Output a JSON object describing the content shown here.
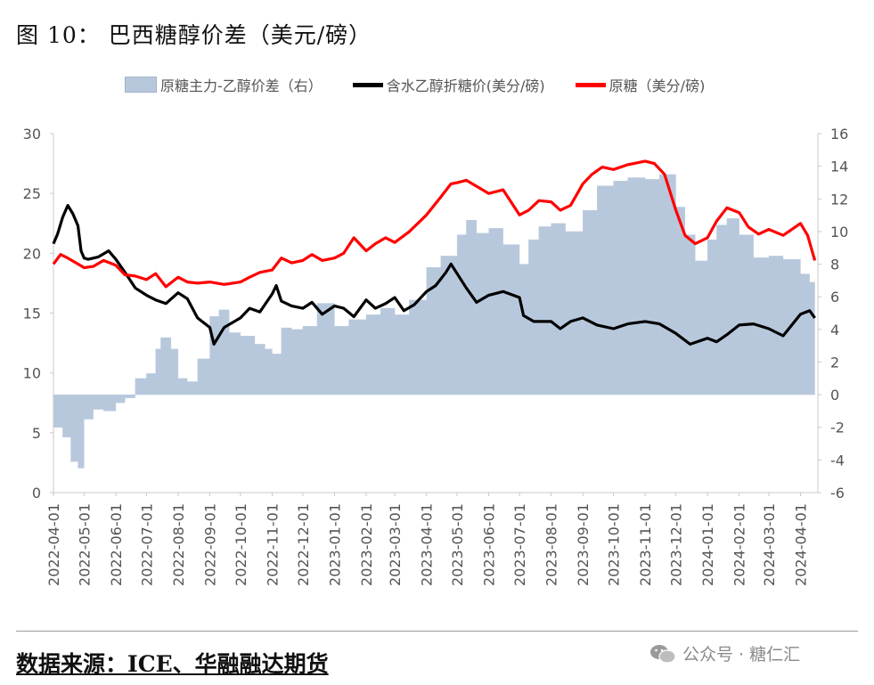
{
  "title": "图 10：  巴西糖醇价差（美元/磅）",
  "source": "数据来源：ICE、华融融达期货",
  "watermark": "公众号 · 糖仁汇",
  "icons": {
    "watermark": "wechat-icon"
  },
  "legend": [
    {
      "label": "原糖主力-乙醇价差（右）",
      "kind": "area",
      "color": "#b8c8dc"
    },
    {
      "label": "含水乙醇折糖价(美分/磅)",
      "kind": "line",
      "color": "#000000"
    },
    {
      "label": "原糖（美分/磅)",
      "kind": "line",
      "color": "#ff0000"
    }
  ],
  "chart_data": {
    "type": "line",
    "x_ticks": [
      "2022-04-01",
      "2022-05-01",
      "2022-06-01",
      "2022-07-01",
      "2022-08-01",
      "2022-09-01",
      "2022-10-01",
      "2022-11-01",
      "2022-12-01",
      "2023-01-01",
      "2023-02-01",
      "2023-03-01",
      "2023-04-01",
      "2023-05-01",
      "2023-06-01",
      "2023-07-01",
      "2023-08-01",
      "2023-09-01",
      "2023-10-01",
      "2023-11-01",
      "2023-12-01",
      "2024-01-01",
      "2024-02-01",
      "2024-03-01",
      "2024-04-01"
    ],
    "y_left": {
      "min": 0,
      "max": 30,
      "ticks": [
        0,
        5,
        10,
        15,
        20,
        25,
        30
      ]
    },
    "y_right": {
      "min": -6,
      "max": 16,
      "ticks": [
        -6,
        -4,
        -2,
        0,
        2,
        4,
        6,
        8,
        10,
        12,
        14,
        16
      ]
    },
    "grid": false,
    "legend_position": "top",
    "series": [
      {
        "name": "原糖主力-乙醇价差（右）",
        "type": "area",
        "axis": "right",
        "color": "#b8c8dc",
        "points": [
          [
            "2022-04-01",
            -2.0
          ],
          [
            "2022-04-10",
            -2.6
          ],
          [
            "2022-04-18",
            -4.1
          ],
          [
            "2022-04-25",
            -4.5
          ],
          [
            "2022-05-01",
            -1.5
          ],
          [
            "2022-05-10",
            -0.9
          ],
          [
            "2022-05-20",
            -1.0
          ],
          [
            "2022-06-01",
            -0.5
          ],
          [
            "2022-06-10",
            -0.2
          ],
          [
            "2022-06-20",
            1.0
          ],
          [
            "2022-07-01",
            1.3
          ],
          [
            "2022-07-10",
            2.8
          ],
          [
            "2022-07-15",
            3.5
          ],
          [
            "2022-07-25",
            2.8
          ],
          [
            "2022-08-01",
            1.0
          ],
          [
            "2022-08-10",
            0.8
          ],
          [
            "2022-08-20",
            2.2
          ],
          [
            "2022-09-01",
            4.8
          ],
          [
            "2022-09-10",
            5.2
          ],
          [
            "2022-09-20",
            3.8
          ],
          [
            "2022-10-01",
            3.6
          ],
          [
            "2022-10-15",
            3.1
          ],
          [
            "2022-10-25",
            2.8
          ],
          [
            "2022-11-01",
            2.5
          ],
          [
            "2022-11-10",
            4.1
          ],
          [
            "2022-11-20",
            4.0
          ],
          [
            "2022-12-01",
            4.2
          ],
          [
            "2022-12-15",
            5.6
          ],
          [
            "2023-01-01",
            4.2
          ],
          [
            "2023-01-15",
            4.6
          ],
          [
            "2023-02-01",
            4.9
          ],
          [
            "2023-02-15",
            5.3
          ],
          [
            "2023-03-01",
            4.9
          ],
          [
            "2023-03-15",
            5.8
          ],
          [
            "2023-04-01",
            7.8
          ],
          [
            "2023-04-15",
            8.5
          ],
          [
            "2023-05-01",
            9.8
          ],
          [
            "2023-05-10",
            10.7
          ],
          [
            "2023-05-20",
            9.9
          ],
          [
            "2023-06-01",
            10.2
          ],
          [
            "2023-06-15",
            9.2
          ],
          [
            "2023-07-01",
            8.0
          ],
          [
            "2023-07-10",
            9.5
          ],
          [
            "2023-07-20",
            10.3
          ],
          [
            "2023-08-01",
            10.5
          ],
          [
            "2023-08-15",
            10.0
          ],
          [
            "2023-09-01",
            11.3
          ],
          [
            "2023-09-15",
            12.8
          ],
          [
            "2023-10-01",
            13.1
          ],
          [
            "2023-10-15",
            13.3
          ],
          [
            "2023-11-01",
            13.2
          ],
          [
            "2023-11-15",
            13.5
          ],
          [
            "2023-12-01",
            11.5
          ],
          [
            "2023-12-10",
            9.8
          ],
          [
            "2023-12-20",
            8.2
          ],
          [
            "2024-01-01",
            9.5
          ],
          [
            "2024-01-10",
            10.4
          ],
          [
            "2024-01-20",
            10.8
          ],
          [
            "2024-02-01",
            9.8
          ],
          [
            "2024-02-15",
            8.4
          ],
          [
            "2024-03-01",
            8.5
          ],
          [
            "2024-03-15",
            8.3
          ],
          [
            "2024-04-01",
            7.4
          ],
          [
            "2024-04-10",
            6.9
          ],
          [
            "2024-04-15",
            5.8
          ]
        ]
      },
      {
        "name": "含水乙醇折糖价(美分/磅)",
        "type": "line",
        "axis": "left",
        "color": "#000000",
        "points": [
          [
            "2022-04-01",
            20.8
          ],
          [
            "2022-04-05",
            21.6
          ],
          [
            "2022-04-10",
            23.0
          ],
          [
            "2022-04-15",
            24.0
          ],
          [
            "2022-04-20",
            23.3
          ],
          [
            "2022-04-25",
            22.3
          ],
          [
            "2022-04-28",
            20.2
          ],
          [
            "2022-05-01",
            19.6
          ],
          [
            "2022-05-05",
            19.5
          ],
          [
            "2022-05-15",
            19.7
          ],
          [
            "2022-05-25",
            20.2
          ],
          [
            "2022-06-01",
            19.5
          ],
          [
            "2022-06-10",
            18.4
          ],
          [
            "2022-06-20",
            17.1
          ],
          [
            "2022-07-01",
            16.5
          ],
          [
            "2022-07-10",
            16.1
          ],
          [
            "2022-07-20",
            15.8
          ],
          [
            "2022-08-01",
            16.7
          ],
          [
            "2022-08-10",
            16.2
          ],
          [
            "2022-08-20",
            14.6
          ],
          [
            "2022-09-01",
            13.8
          ],
          [
            "2022-09-05",
            12.4
          ],
          [
            "2022-09-15",
            13.8
          ],
          [
            "2022-10-01",
            14.6
          ],
          [
            "2022-10-10",
            15.4
          ],
          [
            "2022-10-20",
            15.1
          ],
          [
            "2022-11-01",
            16.6
          ],
          [
            "2022-11-05",
            17.3
          ],
          [
            "2022-11-10",
            16.0
          ],
          [
            "2022-11-20",
            15.6
          ],
          [
            "2022-12-01",
            15.4
          ],
          [
            "2022-12-10",
            15.9
          ],
          [
            "2022-12-20",
            14.9
          ],
          [
            "2023-01-01",
            15.6
          ],
          [
            "2023-01-10",
            15.4
          ],
          [
            "2023-01-20",
            14.7
          ],
          [
            "2023-02-01",
            16.1
          ],
          [
            "2023-02-10",
            15.4
          ],
          [
            "2023-02-20",
            15.8
          ],
          [
            "2023-03-01",
            16.3
          ],
          [
            "2023-03-10",
            15.2
          ],
          [
            "2023-03-20",
            15.7
          ],
          [
            "2023-04-01",
            16.8
          ],
          [
            "2023-04-10",
            17.3
          ],
          [
            "2023-04-20",
            18.4
          ],
          [
            "2023-04-25",
            19.1
          ],
          [
            "2023-05-01",
            18.3
          ],
          [
            "2023-05-10",
            17.1
          ],
          [
            "2023-05-20",
            15.9
          ],
          [
            "2023-06-01",
            16.5
          ],
          [
            "2023-06-15",
            16.8
          ],
          [
            "2023-07-01",
            16.3
          ],
          [
            "2023-07-05",
            14.8
          ],
          [
            "2023-07-15",
            14.3
          ],
          [
            "2023-08-01",
            14.3
          ],
          [
            "2023-08-10",
            13.7
          ],
          [
            "2023-08-20",
            14.3
          ],
          [
            "2023-09-01",
            14.6
          ],
          [
            "2023-09-15",
            14.0
          ],
          [
            "2023-10-01",
            13.7
          ],
          [
            "2023-10-15",
            14.1
          ],
          [
            "2023-11-01",
            14.3
          ],
          [
            "2023-11-15",
            14.1
          ],
          [
            "2023-12-01",
            13.3
          ],
          [
            "2023-12-15",
            12.4
          ],
          [
            "2024-01-01",
            12.9
          ],
          [
            "2024-01-10",
            12.6
          ],
          [
            "2024-01-20",
            13.2
          ],
          [
            "2024-02-01",
            14.0
          ],
          [
            "2024-02-15",
            14.1
          ],
          [
            "2024-03-01",
            13.7
          ],
          [
            "2024-03-15",
            13.1
          ],
          [
            "2024-04-01",
            14.9
          ],
          [
            "2024-04-10",
            15.2
          ],
          [
            "2024-04-15",
            14.6
          ]
        ]
      },
      {
        "name": "原糖（美分/磅)",
        "type": "line",
        "axis": "left",
        "color": "#ff0000",
        "points": [
          [
            "2022-04-01",
            19.1
          ],
          [
            "2022-04-08",
            19.9
          ],
          [
            "2022-04-15",
            19.6
          ],
          [
            "2022-04-25",
            19.1
          ],
          [
            "2022-05-01",
            18.8
          ],
          [
            "2022-05-10",
            18.9
          ],
          [
            "2022-05-20",
            19.4
          ],
          [
            "2022-06-01",
            19.0
          ],
          [
            "2022-06-10",
            18.2
          ],
          [
            "2022-06-20",
            18.1
          ],
          [
            "2022-07-01",
            17.8
          ],
          [
            "2022-07-10",
            18.3
          ],
          [
            "2022-07-20",
            17.2
          ],
          [
            "2022-08-01",
            18.0
          ],
          [
            "2022-08-10",
            17.6
          ],
          [
            "2022-08-20",
            17.5
          ],
          [
            "2022-09-01",
            17.6
          ],
          [
            "2022-09-15",
            17.4
          ],
          [
            "2022-10-01",
            17.6
          ],
          [
            "2022-10-10",
            18.0
          ],
          [
            "2022-10-20",
            18.4
          ],
          [
            "2022-11-01",
            18.6
          ],
          [
            "2022-11-10",
            19.6
          ],
          [
            "2022-11-20",
            19.2
          ],
          [
            "2022-12-01",
            19.4
          ],
          [
            "2022-12-10",
            19.9
          ],
          [
            "2022-12-20",
            19.4
          ],
          [
            "2023-01-01",
            19.6
          ],
          [
            "2023-01-10",
            20.0
          ],
          [
            "2023-01-20",
            21.3
          ],
          [
            "2023-02-01",
            20.2
          ],
          [
            "2023-02-10",
            20.8
          ],
          [
            "2023-02-20",
            21.3
          ],
          [
            "2023-03-01",
            20.9
          ],
          [
            "2023-03-15",
            21.8
          ],
          [
            "2023-04-01",
            23.2
          ],
          [
            "2023-04-15",
            24.7
          ],
          [
            "2023-04-25",
            25.8
          ],
          [
            "2023-05-01",
            25.9
          ],
          [
            "2023-05-10",
            26.1
          ],
          [
            "2023-05-20",
            25.6
          ],
          [
            "2023-06-01",
            25.0
          ],
          [
            "2023-06-15",
            25.3
          ],
          [
            "2023-07-01",
            23.2
          ],
          [
            "2023-07-10",
            23.6
          ],
          [
            "2023-07-20",
            24.4
          ],
          [
            "2023-08-01",
            24.3
          ],
          [
            "2023-08-10",
            23.6
          ],
          [
            "2023-08-20",
            24.0
          ],
          [
            "2023-09-01",
            25.8
          ],
          [
            "2023-09-10",
            26.6
          ],
          [
            "2023-09-20",
            27.2
          ],
          [
            "2023-10-01",
            27.0
          ],
          [
            "2023-10-15",
            27.4
          ],
          [
            "2023-11-01",
            27.7
          ],
          [
            "2023-11-10",
            27.5
          ],
          [
            "2023-11-20",
            26.6
          ],
          [
            "2023-12-01",
            23.6
          ],
          [
            "2023-12-10",
            21.5
          ],
          [
            "2023-12-20",
            20.8
          ],
          [
            "2024-01-01",
            21.3
          ],
          [
            "2024-01-10",
            22.7
          ],
          [
            "2024-01-20",
            23.8
          ],
          [
            "2024-02-01",
            23.4
          ],
          [
            "2024-02-10",
            22.2
          ],
          [
            "2024-02-20",
            21.6
          ],
          [
            "2024-03-01",
            22.0
          ],
          [
            "2024-03-15",
            21.5
          ],
          [
            "2024-04-01",
            22.5
          ],
          [
            "2024-04-08",
            21.5
          ],
          [
            "2024-04-15",
            19.4
          ]
        ]
      }
    ]
  }
}
